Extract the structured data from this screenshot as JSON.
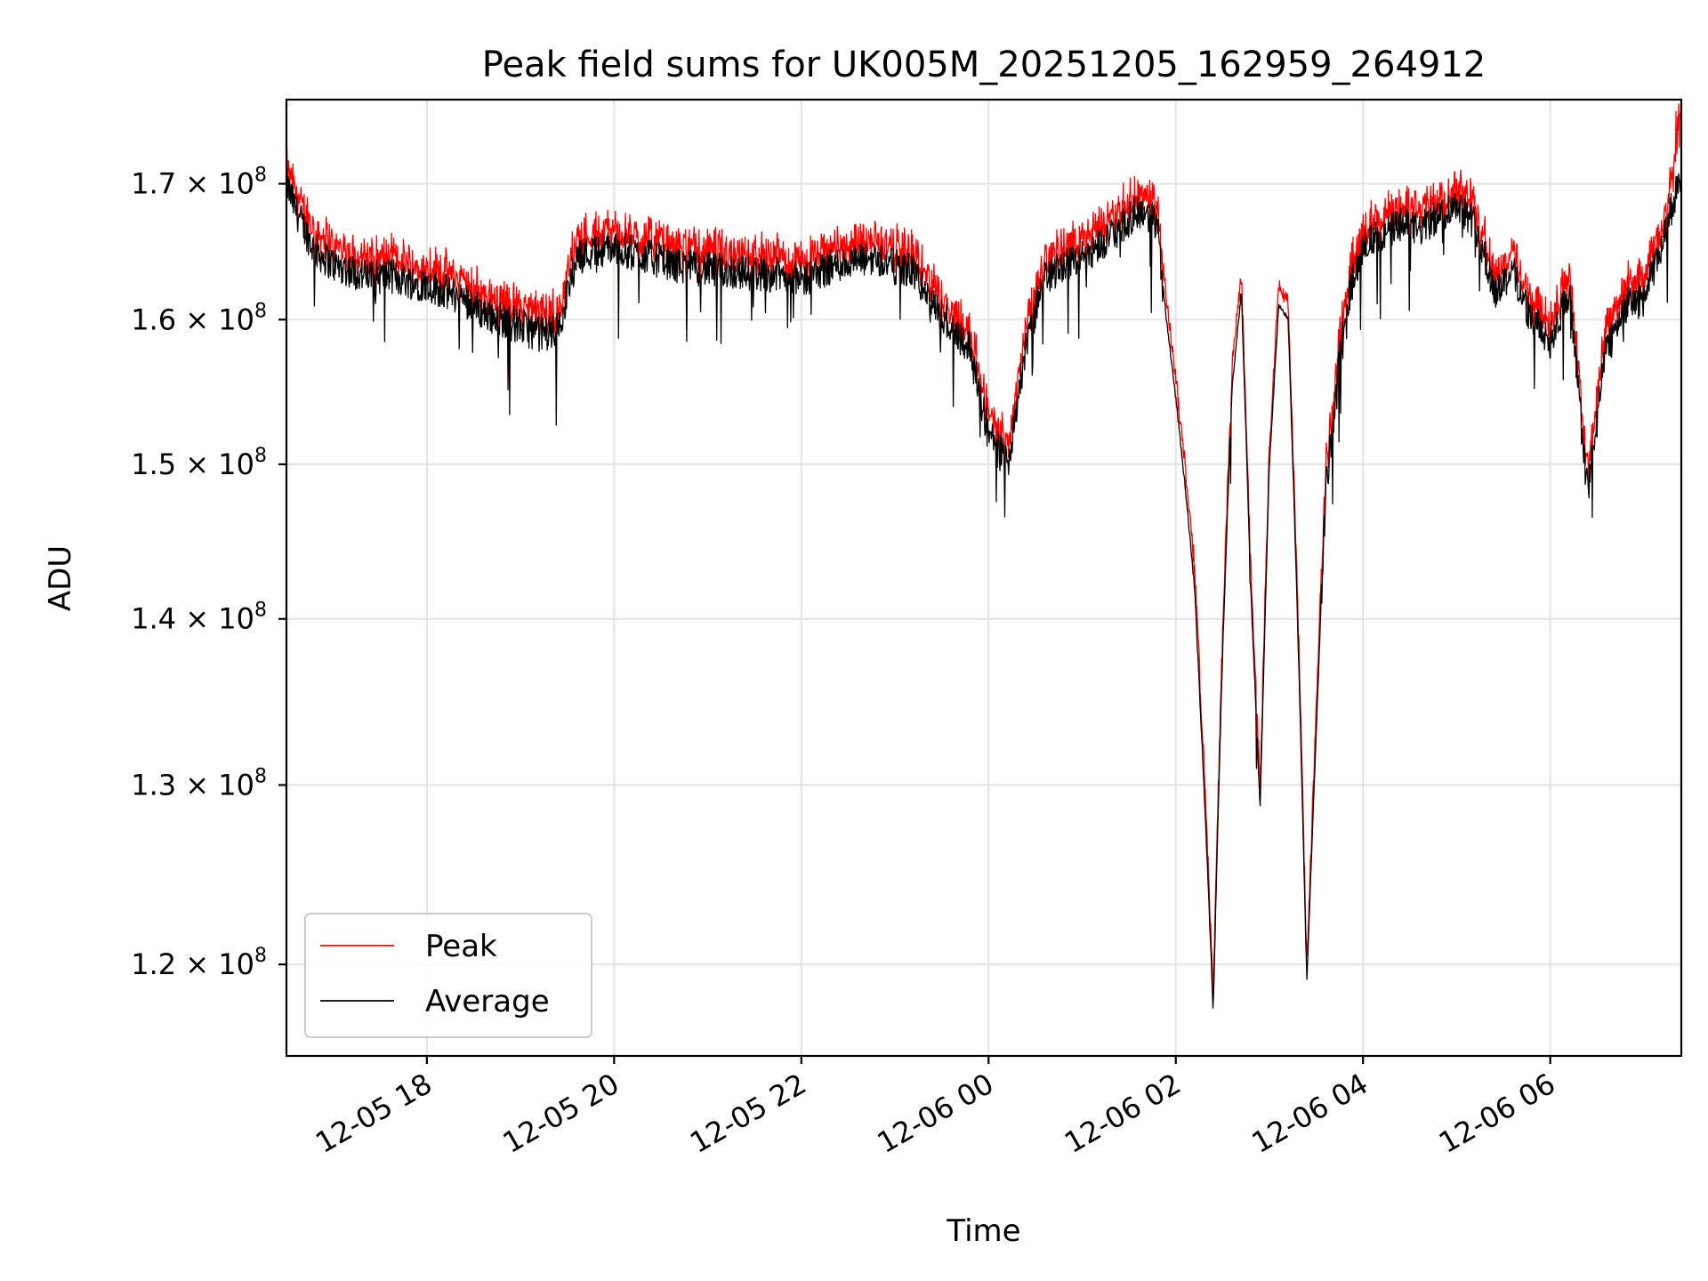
{
  "chart_data": {
    "type": "line",
    "title": "Peak field sums for UK005M_20251205_162959_264912",
    "xlabel": "Time",
    "ylabel": "ADU",
    "grid": true,
    "legend_position": "bottom-left",
    "yscale": "log",
    "ylim": [
      115200000,
      176500000
    ],
    "xlim": [
      16.5,
      31.4
    ],
    "y_ticks": [
      {
        "value": 120000000,
        "label": "1.2 × 10",
        "exp": "8"
      },
      {
        "value": 130000000,
        "label": "1.3 × 10",
        "exp": "8"
      },
      {
        "value": 140000000,
        "label": "1.4 × 10",
        "exp": "8"
      },
      {
        "value": 150000000,
        "label": "1.5 × 10",
        "exp": "8"
      },
      {
        "value": 160000000,
        "label": "1.6 × 10",
        "exp": "8"
      },
      {
        "value": 170000000,
        "label": "1.7 × 10",
        "exp": "8"
      }
    ],
    "x_ticks": [
      {
        "value": 18,
        "label": "12-05 18"
      },
      {
        "value": 20,
        "label": "12-05 20"
      },
      {
        "value": 22,
        "label": "12-05 22"
      },
      {
        "value": 24,
        "label": "12-06 00"
      },
      {
        "value": 26,
        "label": "12-06 02"
      },
      {
        "value": 28,
        "label": "12-06 04"
      },
      {
        "value": 30,
        "label": "12-06 06"
      }
    ],
    "series": [
      {
        "name": "Peak",
        "color": "#ff0000",
        "role": "peak"
      },
      {
        "name": "Average",
        "color": "#000000",
        "role": "average"
      }
    ],
    "x_hours": [
      16.5,
      16.6,
      16.8,
      17.0,
      17.2,
      17.4,
      17.6,
      17.8,
      18.0,
      18.2,
      18.4,
      18.6,
      18.8,
      19.0,
      19.2,
      19.4,
      19.6,
      19.8,
      20.0,
      20.2,
      20.4,
      20.6,
      20.8,
      21.0,
      21.2,
      21.4,
      21.6,
      21.8,
      22.0,
      22.2,
      22.4,
      22.6,
      22.8,
      23.0,
      23.2,
      23.4,
      23.6,
      23.8,
      24.0,
      24.2,
      24.4,
      24.6,
      24.8,
      25.0,
      25.2,
      25.4,
      25.6,
      25.8,
      25.9,
      26.0,
      26.1,
      26.2,
      26.3,
      26.4,
      26.5,
      26.6,
      26.7,
      26.8,
      26.9,
      27.0,
      27.1,
      27.2,
      27.3,
      27.4,
      27.5,
      27.6,
      27.8,
      28.0,
      28.2,
      28.4,
      28.6,
      28.8,
      29.0,
      29.2,
      29.4,
      29.6,
      29.8,
      30.0,
      30.2,
      30.4,
      30.6,
      30.8,
      31.0,
      31.2,
      31.4
    ],
    "average_values": [
      170000000,
      168000000,
      165000000,
      164000000,
      163500000,
      163000000,
      163200000,
      162800000,
      162500000,
      162000000,
      161500000,
      160500000,
      160000000,
      159500000,
      159000000,
      159200000,
      164500000,
      165000000,
      165200000,
      164800000,
      164500000,
      164000000,
      163800000,
      163600000,
      163500000,
      163400000,
      163300000,
      163200000,
      162800000,
      163500000,
      164000000,
      164200000,
      164500000,
      163800000,
      163500000,
      161000000,
      159500000,
      158000000,
      152000000,
      150000000,
      158000000,
      163000000,
      164000000,
      164500000,
      165500000,
      166500000,
      168000000,
      167000000,
      160000000,
      154500000,
      148500000,
      142000000,
      130000000,
      117500000,
      138000000,
      155000000,
      162000000,
      142000000,
      128500000,
      150000000,
      161000000,
      160000000,
      140000000,
      119000000,
      133000000,
      148000000,
      160500000,
      165500000,
      166000000,
      167000000,
      166500000,
      167500000,
      168500000,
      167000000,
      162000000,
      163500000,
      160000000,
      158500000,
      162000000,
      148000000,
      158000000,
      161000000,
      161500000,
      165500000,
      171000000
    ],
    "peak_values": [
      171500000,
      169500000,
      166500000,
      165500000,
      165000000,
      164500000,
      164700000,
      164300000,
      164000000,
      163500000,
      163000000,
      162000000,
      161500000,
      161000000,
      160500000,
      160700000,
      166000000,
      166500000,
      166700000,
      166300000,
      166000000,
      165500000,
      165300000,
      165100000,
      165000000,
      164900000,
      164800000,
      164700000,
      164300000,
      165000000,
      165500000,
      165700000,
      166000000,
      165300000,
      165000000,
      162500000,
      161000000,
      159500000,
      153500000,
      151500000,
      159500000,
      164500000,
      165500000,
      166000000,
      167000000,
      168000000,
      169500000,
      168500000,
      161500000,
      156000000,
      150000000,
      143500000,
      131500000,
      118500000,
      139500000,
      156500000,
      163500000,
      143500000,
      130000000,
      151500000,
      162500000,
      161500000,
      141500000,
      120000000,
      134500000,
      149500000,
      162000000,
      167000000,
      167500000,
      168500000,
      168000000,
      169000000,
      170000000,
      168500000,
      163500000,
      165000000,
      161500000,
      160000000,
      163500000,
      149500000,
      159500000,
      162500000,
      163000000,
      167000000,
      176000000
    ]
  }
}
